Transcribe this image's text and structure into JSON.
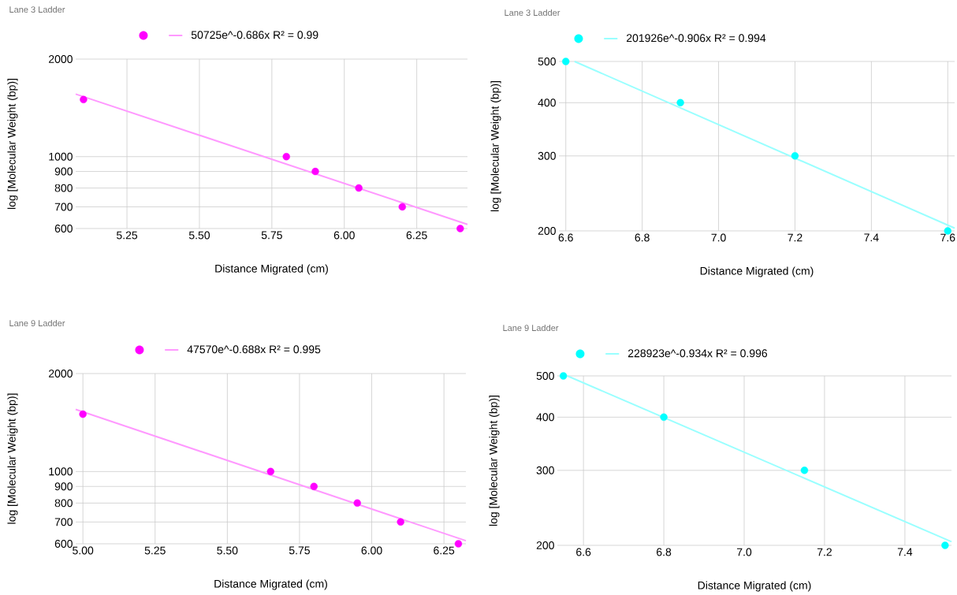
{
  "chart_data": [
    {
      "type": "scatter",
      "title": "Lane 3 Ladder",
      "xlabel": "Distance Migrated (cm)",
      "ylabel": "log [Molecular Weight (bp)]",
      "log": true,
      "grid": true,
      "legend": "top",
      "xlim": [
        5.073,
        6.425
      ],
      "ylim": [
        600,
        2000
      ],
      "xticks": [
        5.25,
        {
          "value": 5.5,
          "label": "5.50"
        },
        5.75,
        {
          "value": 6,
          "label": "6.00"
        },
        6.25
      ],
      "yticks": [
        600,
        700,
        800,
        900,
        1000,
        2000
      ],
      "series": [
        {
          "marker": "circle",
          "color": "#ff00ff",
          "x": [
            5.1,
            5.8,
            5.9,
            6.05,
            6.2,
            6.4
          ],
          "values": [
            1500,
            1000,
            900,
            800,
            700,
            600
          ]
        },
        {
          "type": "line",
          "marker": "none",
          "name": "50725e^-0.686x R² = 0.99",
          "color": "#ff99ff",
          "x": [
            5.073,
            6.425
          ],
          "values": [
            1560,
            618
          ]
        }
      ]
    },
    {
      "type": "scatter",
      "title": "Lane 3 Ladder",
      "xlabel": "Distance Migrated (cm)",
      "ylabel": "log [Molecular Weight (bp)]",
      "log": true,
      "grid": true,
      "legend": "top",
      "xlim": [
        6.582,
        7.618
      ],
      "ylim": [
        200,
        500
      ],
      "xticks": [
        6.6,
        6.8,
        {
          "value": 7,
          "label": "7.0"
        },
        7.2,
        7.4,
        7.6
      ],
      "yticks": [
        200,
        300,
        400,
        500
      ],
      "series": [
        {
          "marker": "circle",
          "color": "#00ffff",
          "x": [
            6.6,
            6.9,
            7.2,
            7.6
          ],
          "values": [
            500,
            400,
            300,
            200
          ]
        },
        {
          "type": "line",
          "marker": "none",
          "name": "201926e^-0.906x R² = 0.994",
          "color": "#99ffff",
          "x": [
            6.623,
            7.618
          ],
          "values": [
            500,
            203
          ]
        }
      ]
    },
    {
      "type": "scatter",
      "title": "Lane 9 Ladder",
      "xlabel": "Distance Migrated (cm)",
      "ylabel": "log [Molecular Weight (bp)]",
      "log": true,
      "grid": true,
      "legend": "top",
      "xlim": [
        4.975,
        6.326
      ],
      "ylim": [
        600,
        2000
      ],
      "xticks": [
        {
          "value": 5,
          "label": "5.00"
        },
        5.25,
        {
          "value": 5.5,
          "label": "5.50"
        },
        5.75,
        {
          "value": 6,
          "label": "6.00"
        },
        6.25
      ],
      "yticks": [
        600,
        700,
        800,
        900,
        1000,
        2000
      ],
      "series": [
        {
          "marker": "circle",
          "color": "#ff00ff",
          "x": [
            5.0,
            5.65,
            5.8,
            5.95,
            6.1,
            6.3
          ],
          "values": [
            1500,
            1000,
            900,
            800,
            700,
            600
          ]
        },
        {
          "type": "line",
          "marker": "none",
          "name": "47570e^-0.688x R² = 0.995",
          "color": "#ff99ff",
          "x": [
            4.975,
            6.326
          ],
          "values": [
            1552,
            613
          ]
        }
      ]
    },
    {
      "type": "scatter",
      "title": "Lane 9 Ladder",
      "xlabel": "Distance Migrated (cm)",
      "ylabel": "log [Molecular Weight (bp)]",
      "log": true,
      "grid": true,
      "legend": "top",
      "xlim": [
        6.535,
        7.516
      ],
      "ylim": [
        200,
        500
      ],
      "xticks": [
        6.6,
        6.8,
        {
          "value": 7,
          "label": "7.0"
        },
        7.2,
        7.4
      ],
      "yticks": [
        200,
        300,
        400,
        500
      ],
      "series": [
        {
          "marker": "circle",
          "color": "#00ffff",
          "x": [
            6.55,
            6.8,
            7.15,
            7.5
          ],
          "values": [
            500,
            400,
            300,
            200
          ]
        },
        {
          "type": "line",
          "marker": "none",
          "name": "228923e^-0.934x R² = 0.996",
          "color": "#99ffff",
          "x": [
            6.56,
            7.516
          ],
          "values": [
            500,
            204
          ]
        }
      ]
    }
  ]
}
